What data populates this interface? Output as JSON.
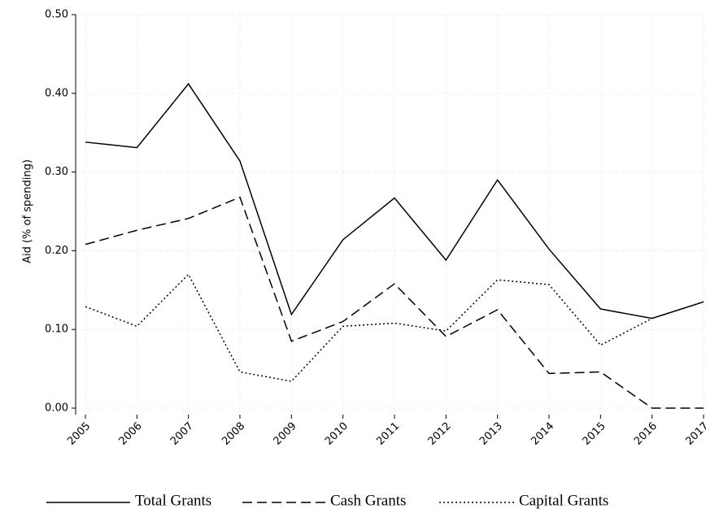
{
  "chart_data": {
    "type": "line",
    "y_label": "Aid (% of spending)",
    "categories": [
      "2005",
      "2006",
      "2007",
      "2008",
      "2009",
      "2010",
      "2011",
      "2012",
      "2013",
      "2014",
      "2015",
      "2016",
      "2017"
    ],
    "series": [
      {
        "name": "Total Grants",
        "color": "#000000",
        "dash": "solid",
        "values": [
          0.338,
          0.331,
          0.412,
          0.314,
          0.119,
          0.214,
          0.267,
          0.188,
          0.29,
          0.202,
          0.126,
          0.114,
          0.135
        ]
      },
      {
        "name": "Cash Grants",
        "color": "#000000",
        "dash": "dashed",
        "values": [
          0.208,
          0.226,
          0.241,
          0.268,
          0.085,
          0.11,
          0.158,
          0.091,
          0.125,
          0.044,
          0.046,
          0,
          0
        ]
      },
      {
        "name": "Capital Grants",
        "color": "#000000",
        "dash": "dotted",
        "values": [
          0.129,
          0.104,
          0.17,
          0.046,
          0.034,
          0.104,
          0.108,
          0.098,
          0.163,
          0.157,
          0.08,
          0.114,
          0.135
        ]
      }
    ],
    "ylim": [
      0,
      0.5
    ],
    "yticks": [
      {
        "value": 0,
        "label": "0.00"
      },
      {
        "value": 0.1,
        "label": "0.10"
      },
      {
        "value": 0.2,
        "label": "0.20"
      },
      {
        "value": 0.3,
        "label": "0.30"
      },
      {
        "value": 0.4,
        "label": "0.40"
      },
      {
        "value": 0.5,
        "label": "0.50"
      }
    ],
    "grid": true
  }
}
